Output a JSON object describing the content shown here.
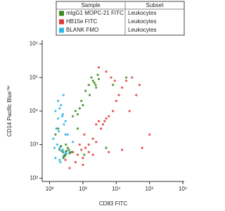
{
  "chart_data": {
    "type": "scatter",
    "x_label": "CD83 FITC",
    "y_label": "CD14 Pacific Blue™",
    "log_x": true,
    "log_y": true,
    "xlim": [
      60,
      1100000
    ],
    "ylim": [
      80,
      1300000
    ],
    "xticks": [
      {
        "value": 100,
        "label": "10²"
      },
      {
        "value": 1000,
        "label": "10³"
      },
      {
        "value": 10000,
        "label": "10⁴"
      },
      {
        "value": 100000,
        "label": "10⁵"
      },
      {
        "value": 1000000,
        "label": "10⁶"
      }
    ],
    "yticks": [
      {
        "value": 100,
        "label": "10²"
      },
      {
        "value": 1000,
        "label": "10³"
      },
      {
        "value": 10000,
        "label": "10⁴"
      },
      {
        "value": 100000,
        "label": "10⁵"
      },
      {
        "value": 1000000,
        "label": "10⁶"
      }
    ],
    "legend_header": [
      "Sample",
      "Subset"
    ],
    "series": [
      {
        "name": "mIgG1 MOPC-21 FITC",
        "subset": "Leukocytes",
        "color": "#3a8a1e",
        "x": [
          250,
          300,
          200,
          350,
          280,
          320,
          400,
          220,
          260,
          310,
          380,
          450,
          600,
          800,
          700,
          1000,
          500,
          900,
          1500,
          2000,
          2500,
          1800,
          2200,
          3000,
          1200,
          2800,
          1600,
          2400,
          150,
          180,
          700,
          1100,
          5000,
          8000,
          20000
        ],
        "values": [
          600,
          500,
          700,
          800,
          450,
          650,
          550,
          900,
          400,
          1000,
          700,
          600,
          10000,
          12000,
          8000,
          15000,
          7000,
          20000,
          60000,
          80000,
          50000,
          100000,
          70000,
          90000,
          40000,
          120000,
          30000,
          60000,
          2000,
          3000,
          3000,
          500,
          800,
          60000,
          100000
        ]
      },
      {
        "name": "HB15e FITC",
        "subset": "Leukocytes",
        "color": "#e0393a",
        "x": [
          500,
          700,
          900,
          1000,
          1200,
          800,
          600,
          1500,
          2000,
          1100,
          3000,
          4000,
          5000,
          3500,
          4500,
          6000,
          2500,
          8000,
          10000,
          20000,
          15000,
          30000,
          50000,
          12000,
          25000,
          3000,
          5000,
          7000,
          9000,
          40000,
          1500,
          2000,
          2500,
          6000,
          15000,
          400,
          300,
          1000,
          60000,
          100000
        ],
        "values": [
          600,
          500,
          700,
          400,
          800,
          1000,
          300,
          600,
          500,
          2000,
          5000,
          4000,
          6000,
          3000,
          5000,
          7000,
          4000,
          10000,
          20000,
          80000,
          50000,
          100000,
          60000,
          30000,
          10000,
          200000,
          150000,
          100000,
          80000,
          30000,
          1000,
          1500,
          1200,
          600,
          700,
          200,
          350,
          250,
          800,
          2000
        ]
      },
      {
        "name": "BLANK FMO",
        "subset": "Leukocytes",
        "color": "#29b5e8",
        "x": [
          150,
          200,
          250,
          180,
          300,
          220,
          160,
          350,
          270,
          190,
          240,
          130,
          200,
          250,
          300,
          220,
          280,
          170,
          150,
          200,
          260,
          320,
          230,
          400,
          180,
          140,
          500,
          210,
          300,
          260
        ],
        "values": [
          10000,
          12000,
          8000,
          6000,
          5000,
          15000,
          3000,
          2000,
          4000,
          2500,
          7000,
          1500,
          800,
          700,
          600,
          900,
          500,
          1000,
          400,
          350,
          450,
          550,
          650,
          600,
          20000,
          800,
          1200,
          300,
          2000,
          30000
        ]
      }
    ]
  }
}
